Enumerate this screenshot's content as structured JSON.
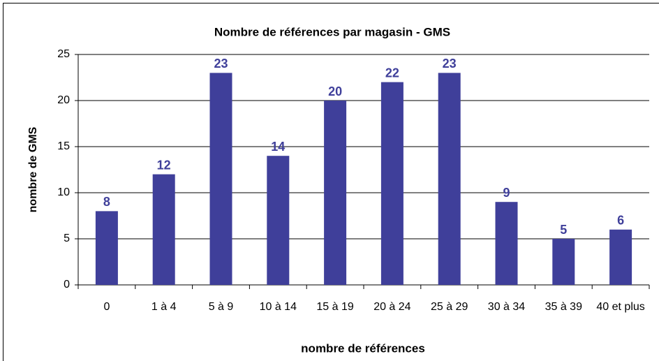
{
  "chart_data": {
    "type": "bar",
    "title": "Nombre de références par magasin - GMS",
    "xlabel": "nombre de références",
    "ylabel": "nombre de GMS",
    "categories": [
      "0",
      "1 à 4",
      "5 à 9",
      "10 à 14",
      "15 à 19",
      "20 à 24",
      "25 à 29",
      "30 à 34",
      "35 à 39",
      "40 et plus"
    ],
    "values": [
      8,
      12,
      23,
      14,
      20,
      22,
      23,
      9,
      5,
      6
    ],
    "color": "#3f3f9a",
    "label_color": "#3f3f9a",
    "ylim": [
      0,
      25
    ],
    "yticks": [
      0,
      5,
      10,
      15,
      20,
      25
    ],
    "grid": true
  }
}
